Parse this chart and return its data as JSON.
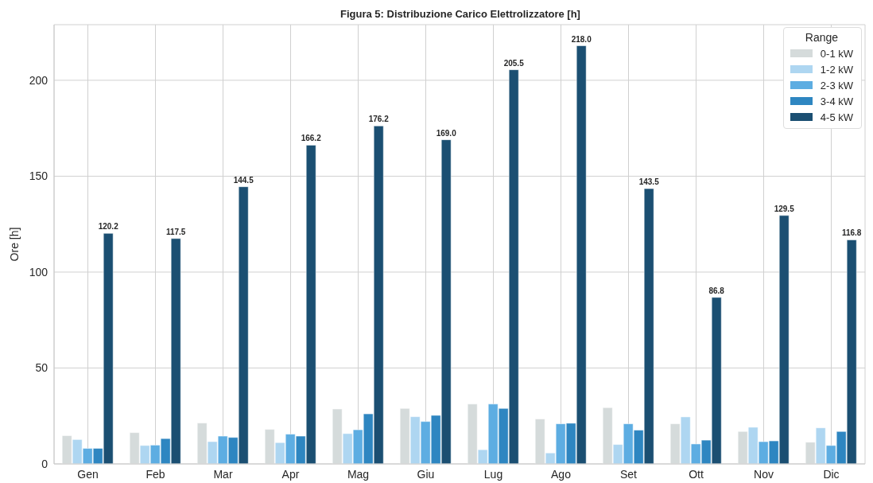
{
  "chart_data": {
    "type": "bar",
    "title": "Figura 5: Distribuzione Carico Elettrolizzatore [h]",
    "ylabel": "Ore [h]",
    "legend_title": "Range",
    "categories": [
      "Gen",
      "Feb",
      "Mar",
      "Apr",
      "Mag",
      "Giu",
      "Lug",
      "Ago",
      "Set",
      "Ott",
      "Nov",
      "Dic"
    ],
    "series": [
      {
        "name": "0-1 kW",
        "color": "#d5dbdb",
        "values": [
          14.7,
          16.3,
          21.3,
          18.0,
          28.6,
          28.9,
          31.2,
          23.4,
          29.3,
          20.9,
          16.9,
          11.3
        ]
      },
      {
        "name": "1-2 kW",
        "color": "#aed6f1",
        "values": [
          12.7,
          9.6,
          11.6,
          11.1,
          15.8,
          24.6,
          7.4,
          5.7,
          10.1,
          24.5,
          19.1,
          18.8
        ]
      },
      {
        "name": "2-3 kW",
        "color": "#5dade2",
        "values": [
          8.1,
          9.8,
          14.5,
          15.5,
          17.8,
          22.1,
          31.2,
          20.9,
          20.9,
          10.4,
          11.6,
          9.6
        ]
      },
      {
        "name": "3-4 kW",
        "color": "#2e86c1",
        "values": [
          8.1,
          13.2,
          13.8,
          14.5,
          26.1,
          25.3,
          28.9,
          21.2,
          17.6,
          12.4,
          12.0,
          16.9
        ]
      },
      {
        "name": "4-5 kW",
        "color": "#1b4f72",
        "values": [
          120.2,
          117.5,
          144.5,
          166.2,
          176.2,
          169.0,
          205.5,
          218.0,
          143.5,
          86.8,
          129.5,
          116.8
        ],
        "value_labels": [
          "120.2",
          "117.5",
          "144.5",
          "166.2",
          "176.2",
          "169.0",
          "205.5",
          "218.0",
          "143.5",
          "86.8",
          "129.5",
          "116.8"
        ]
      }
    ],
    "ylim": [
      0,
      229
    ],
    "yticks": [
      0,
      50,
      100,
      150,
      200
    ],
    "grid": true,
    "legend": "top right"
  }
}
